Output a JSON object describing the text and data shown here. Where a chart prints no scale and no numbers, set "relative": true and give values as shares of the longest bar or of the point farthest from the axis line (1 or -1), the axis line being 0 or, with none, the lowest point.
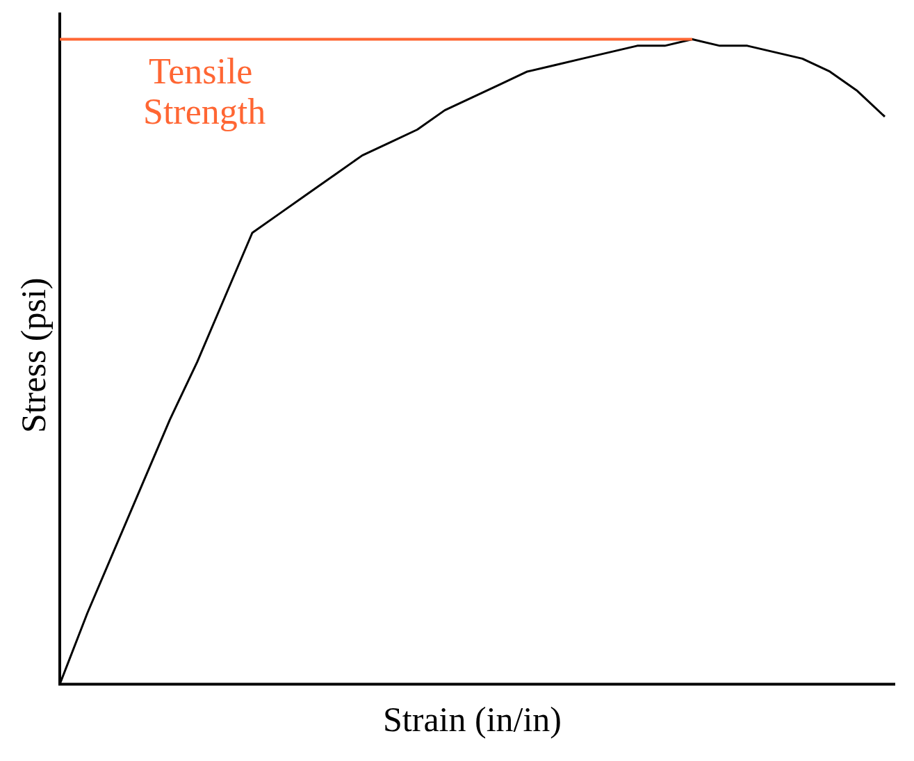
{
  "chart_data": {
    "type": "line",
    "relative": true,
    "xlabel": "Strain (in/in)",
    "ylabel": "Stress (psi)",
    "categories": [
      null,
      null,
      null,
      null,
      null,
      null,
      null,
      null,
      null,
      null,
      null,
      null,
      null,
      null,
      null,
      null,
      null,
      null,
      null,
      null,
      null,
      null,
      null,
      null,
      null,
      null,
      null,
      null,
      null,
      null,
      null
    ],
    "series": [
      {
        "color": "#000000",
        "values": [
          0,
          0.11,
          0.21,
          0.31,
          0.41,
          0.5,
          0.6,
          0.7,
          0.73,
          0.76,
          0.79,
          0.82,
          0.84,
          0.86,
          0.89,
          0.91,
          0.93,
          0.95,
          0.96,
          0.97,
          0.98,
          0.99,
          0.99,
          1,
          0.99,
          0.99,
          0.98,
          0.97,
          0.95,
          0.92,
          0.88
        ]
      }
    ],
    "ref_lines": [
      {
        "axis": "y",
        "value": 1,
        "label": "Tensile Strength",
        "color": "#ff6633"
      }
    ],
    "grid": false,
    "legend": false,
    "marker": "none",
    "line_style": "solid"
  }
}
